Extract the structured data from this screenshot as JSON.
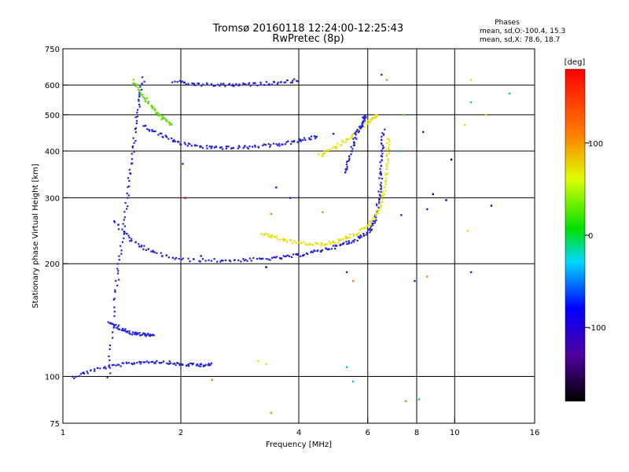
{
  "chart_data": {
    "type": "scatter",
    "title": "Tromsø 20160118 12:24:00-12:25:43",
    "subtitle": "RwPretec (8p)",
    "xlabel": "Frequency [MHz]",
    "ylabel": "Stationary phase Virtual Height [km]",
    "x_scale": "log",
    "y_scale": "log",
    "xlim": [
      1,
      16
    ],
    "ylim": [
      75,
      750
    ],
    "grid": true,
    "x_ticks": [
      {
        "value": 1,
        "label": "1"
      },
      {
        "value": 2,
        "label": "2"
      },
      {
        "value": 4,
        "label": "4"
      },
      {
        "value": 6,
        "label": "6"
      },
      {
        "value": 8,
        "label": "8"
      },
      {
        "value": 10,
        "label": "10"
      },
      {
        "value": 16,
        "label": "16"
      }
    ],
    "x_grid": [
      2,
      4,
      6,
      8,
      10
    ],
    "y_ticks": [
      {
        "value": 75,
        "label": "75"
      },
      {
        "value": 100,
        "label": "100"
      },
      {
        "value": 200,
        "label": "200"
      },
      {
        "value": 300,
        "label": "300"
      },
      {
        "value": 400,
        "label": "400"
      },
      {
        "value": 500,
        "label": "500"
      },
      {
        "value": 600,
        "label": "600"
      },
      {
        "value": 750,
        "label": "750"
      }
    ],
    "y_grid": [
      100,
      200,
      300,
      400,
      500,
      600
    ],
    "stats_title": "Phases",
    "stats_lines": [
      "mean, sd,O:-100.4, 15.3",
      "mean, sd,X:  78.6, 18.7"
    ],
    "colorbar": {
      "label": "[deg]",
      "range": [
        -180,
        180
      ],
      "ticks": [
        {
          "value": 100,
          "label": "100"
        },
        {
          "value": 0,
          "label": "0"
        },
        {
          "value": -100,
          "label": "-100"
        }
      ]
    },
    "traces": [
      {
        "name": "",
        "color": "#2020e0",
        "points": [
          [
            1.05,
            100
          ],
          [
            1.2,
            105
          ],
          [
            1.4,
            108
          ],
          [
            1.6,
            110
          ],
          [
            1.8,
            110
          ],
          [
            2.0,
            108
          ],
          [
            2.2,
            108
          ],
          [
            2.4,
            108
          ]
        ]
      },
      {
        "name": "",
        "color": "#2020e0",
        "points": [
          [
            1.3,
            140
          ],
          [
            1.4,
            135
          ],
          [
            1.5,
            131
          ],
          [
            1.6,
            130
          ],
          [
            1.7,
            130
          ]
        ]
      },
      {
        "name": "",
        "color": "#2020e0",
        "points": [
          [
            1.35,
            260
          ],
          [
            1.5,
            230
          ],
          [
            1.7,
            215
          ],
          [
            2.0,
            206
          ],
          [
            2.5,
            205
          ],
          [
            3.0,
            206
          ],
          [
            3.5,
            208
          ],
          [
            4.0,
            212
          ],
          [
            4.5,
            218
          ],
          [
            5.0,
            224
          ],
          [
            5.5,
            232
          ],
          [
            6.0,
            245
          ],
          [
            6.2,
            260
          ],
          [
            6.35,
            290
          ],
          [
            6.45,
            340
          ],
          [
            6.5,
            400
          ],
          [
            6.55,
            460
          ]
        ]
      },
      {
        "name": "",
        "color": "#e8e000",
        "points": [
          [
            3.2,
            242
          ],
          [
            3.5,
            235
          ],
          [
            4.0,
            228
          ],
          [
            4.5,
            226
          ],
          [
            5.0,
            230
          ],
          [
            5.5,
            240
          ],
          [
            6.0,
            255
          ],
          [
            6.4,
            280
          ],
          [
            6.6,
            320
          ],
          [
            6.7,
            380
          ],
          [
            6.75,
            440
          ]
        ]
      },
      {
        "name": "",
        "color": "#2020e0",
        "points": [
          [
            1.6,
            470
          ],
          [
            1.8,
            440
          ],
          [
            2.0,
            420
          ],
          [
            2.3,
            412
          ],
          [
            2.6,
            410
          ],
          [
            3.0,
            412
          ],
          [
            3.5,
            418
          ],
          [
            4.0,
            428
          ],
          [
            4.5,
            440
          ]
        ]
      },
      {
        "name": "",
        "color": "#e8e000",
        "points": [
          [
            4.5,
            390
          ],
          [
            5.0,
            415
          ],
          [
            5.5,
            445
          ],
          [
            6.0,
            480
          ],
          [
            6.3,
            500
          ]
        ]
      },
      {
        "name": "",
        "color": "#2020e0",
        "points": [
          [
            5.2,
            350
          ],
          [
            5.4,
            400
          ],
          [
            5.6,
            450
          ],
          [
            5.8,
            480
          ],
          [
            5.9,
            500
          ]
        ]
      },
      {
        "name": "",
        "color": "#2020e0",
        "points": [
          [
            1.9,
            615
          ],
          [
            2.2,
            605
          ],
          [
            2.6,
            603
          ],
          [
            3.0,
            605
          ],
          [
            3.5,
            612
          ],
          [
            4.0,
            622
          ]
        ]
      },
      {
        "name": "",
        "color": "#2020e0",
        "points": [
          [
            1.3,
            100
          ],
          [
            1.35,
            160
          ],
          [
            1.4,
            220
          ],
          [
            1.45,
            300
          ],
          [
            1.5,
            400
          ],
          [
            1.55,
            520
          ],
          [
            1.6,
            640
          ]
        ]
      },
      {
        "name": "",
        "color": "#60e000",
        "points": [
          [
            1.5,
            620
          ],
          [
            1.6,
            560
          ],
          [
            1.7,
            520
          ],
          [
            1.8,
            490
          ],
          [
            1.9,
            470
          ]
        ]
      }
    ],
    "scatter_points": [
      {
        "x": 2.02,
        "y": 370,
        "color": "#2020e0"
      },
      {
        "x": 2.05,
        "y": 300,
        "color": "#e00000"
      },
      {
        "x": 2.25,
        "y": 210,
        "color": "#2020e0"
      },
      {
        "x": 3.15,
        "y": 110,
        "color": "#e8e000"
      },
      {
        "x": 3.3,
        "y": 108,
        "color": "#e8e000"
      },
      {
        "x": 2.4,
        "y": 98,
        "color": "#ff8000"
      },
      {
        "x": 3.4,
        "y": 80,
        "color": "#60e000"
      },
      {
        "x": 5.3,
        "y": 106,
        "color": "#00c0ff"
      },
      {
        "x": 5.5,
        "y": 97,
        "color": "#00c0ff"
      },
      {
        "x": 5.3,
        "y": 190,
        "color": "#2020e0"
      },
      {
        "x": 5.5,
        "y": 180,
        "color": "#ff8000"
      },
      {
        "x": 7.5,
        "y": 86,
        "color": "#ff8000"
      },
      {
        "x": 8.1,
        "y": 87,
        "color": "#00c0ff"
      },
      {
        "x": 7.9,
        "y": 180,
        "color": "#2020e0"
      },
      {
        "x": 8.5,
        "y": 185,
        "color": "#ff8000"
      },
      {
        "x": 7.3,
        "y": 270,
        "color": "#2020e0"
      },
      {
        "x": 8.5,
        "y": 280,
        "color": "#2020e0"
      },
      {
        "x": 8.8,
        "y": 307,
        "color": "#000060"
      },
      {
        "x": 9.5,
        "y": 296,
        "color": "#000060"
      },
      {
        "x": 9.8,
        "y": 380,
        "color": "#000060"
      },
      {
        "x": 11.0,
        "y": 190,
        "color": "#2020e0"
      },
      {
        "x": 10.8,
        "y": 245,
        "color": "#e8e000"
      },
      {
        "x": 12.4,
        "y": 286,
        "color": "#000060"
      },
      {
        "x": 13.8,
        "y": 570,
        "color": "#00c0ff"
      },
      {
        "x": 11.0,
        "y": 540,
        "color": "#00c0ff"
      },
      {
        "x": 10.6,
        "y": 470,
        "color": "#e8e000"
      },
      {
        "x": 11.0,
        "y": 620,
        "color": "#e8e000"
      },
      {
        "x": 12.0,
        "y": 500,
        "color": "#e8e000"
      },
      {
        "x": 8.3,
        "y": 450,
        "color": "#2020e0"
      },
      {
        "x": 7.2,
        "y": 400,
        "color": "#00c0ff"
      },
      {
        "x": 7.4,
        "y": 500,
        "color": "#60e000"
      },
      {
        "x": 3.5,
        "y": 320,
        "color": "#2020e0"
      },
      {
        "x": 3.8,
        "y": 300,
        "color": "#2020e0"
      },
      {
        "x": 3.4,
        "y": 272,
        "color": "#ff8000"
      },
      {
        "x": 4.6,
        "y": 275,
        "color": "#ff8000"
      },
      {
        "x": 3.3,
        "y": 196,
        "color": "#000060"
      },
      {
        "x": 4.9,
        "y": 445,
        "color": "#2020e0"
      },
      {
        "x": 6.5,
        "y": 640,
        "color": "#2020e0"
      },
      {
        "x": 6.7,
        "y": 620,
        "color": "#60e000"
      }
    ]
  }
}
